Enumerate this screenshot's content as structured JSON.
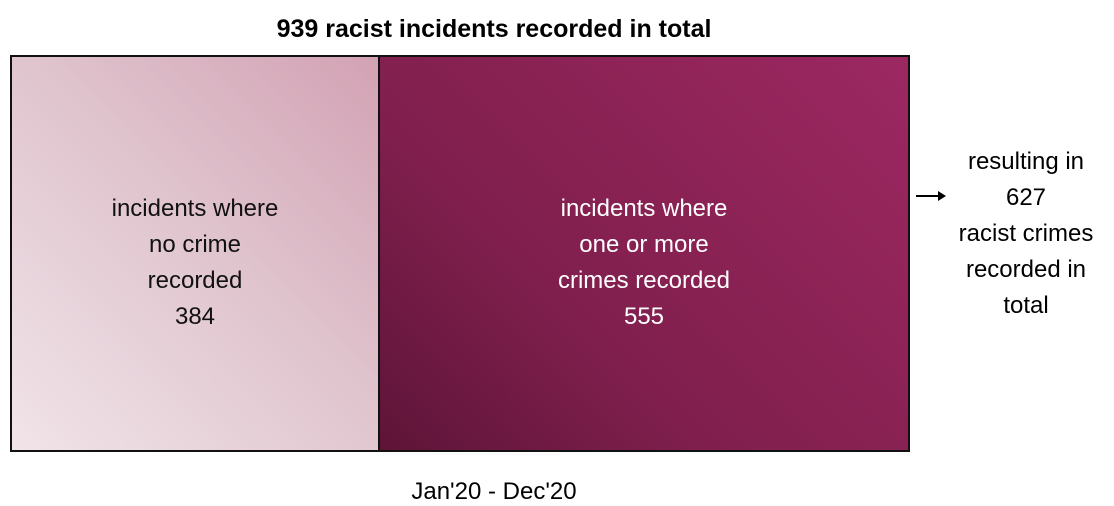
{
  "title": "939 racist incidents recorded in total",
  "left_box": {
    "lines": [
      "incidents where",
      "no crime",
      "recorded"
    ],
    "value": "384",
    "color": "#e3c8d2"
  },
  "right_box": {
    "lines": [
      "incidents where",
      "one or more",
      "crimes recorded"
    ],
    "value": "555",
    "color": "#8a2254"
  },
  "outcome": {
    "lines": [
      "resulting in",
      "627",
      "racist crimes",
      "recorded in",
      "total"
    ],
    "arrow_icon": "arrow-right-icon"
  },
  "period": "Jan'20 - Dec'20"
}
